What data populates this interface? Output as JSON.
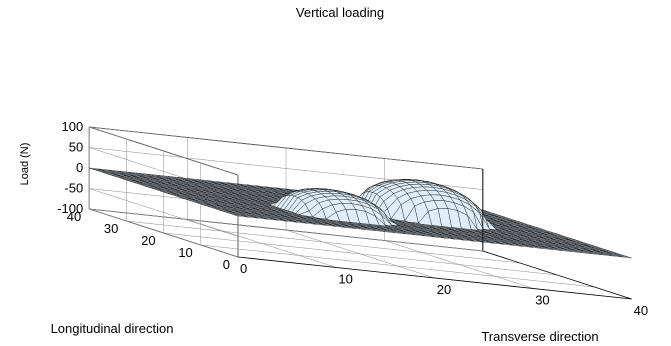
{
  "chart_data": {
    "type": "surface",
    "title": "Vertical loading",
    "zlabel": "Load (N)",
    "xlabel": "Transverse direction",
    "ylabel": "Longitudinal direction",
    "x_range": [
      0,
      40
    ],
    "y_range": [
      0,
      40
    ],
    "z_range": [
      -100,
      100
    ],
    "x_ticks": [
      "0",
      "10",
      "20",
      "30",
      "40"
    ],
    "y_ticks": [
      "0",
      "10",
      "20",
      "30",
      "40"
    ],
    "z_ticks": [
      "-100",
      "-50",
      "0",
      "50",
      "100"
    ],
    "grid": true,
    "surface": {
      "x_grid": {
        "start": 0,
        "end": 40,
        "step": 1
      },
      "y_grid": {
        "start": 0,
        "end": 40,
        "step": 1
      },
      "baseline_load": 0,
      "load_regions": [
        {
          "x_center": 15,
          "y_center": 14,
          "x_halfwidth": 5,
          "y_halfwidth": 7,
          "peak_load": 60
        },
        {
          "x_center": 27,
          "y_center": 22,
          "x_halfwidth": 6,
          "y_halfwidth": 8,
          "peak_load": 90
        }
      ]
    },
    "colors": {
      "surface_fill": "#dfeef8",
      "mesh": "#000000",
      "axes": "#000000",
      "grid": "#8a8a8a"
    }
  }
}
